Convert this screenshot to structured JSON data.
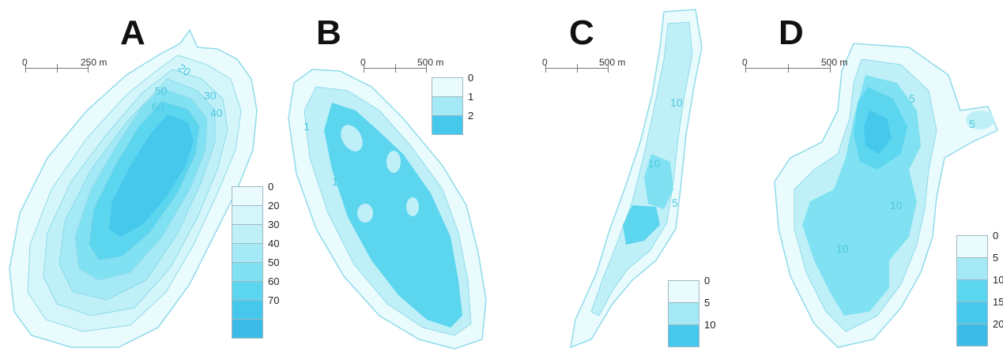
{
  "panels": [
    {
      "letter": "A",
      "scale": {
        "zero": "0",
        "end": "250 m"
      },
      "legend": [
        "0",
        "20",
        "30",
        "40",
        "50",
        "60",
        "70"
      ],
      "contour_labels": [
        "20",
        "30",
        "40",
        "50",
        "60"
      ]
    },
    {
      "letter": "B",
      "scale": {
        "zero": "0",
        "end": "500 m"
      },
      "legend": [
        "0",
        "1",
        "2"
      ],
      "contour_labels": [
        "1",
        "1"
      ]
    },
    {
      "letter": "C",
      "scale": {
        "zero": "0",
        "end": "500 m"
      },
      "legend": [
        "0",
        "5",
        "10"
      ],
      "contour_labels": [
        "10",
        "10",
        "5"
      ]
    },
    {
      "letter": "D",
      "scale": {
        "zero": "0",
        "end": "500 m"
      },
      "legend": [
        "0",
        "5",
        "10",
        "15",
        "20"
      ],
      "contour_labels": [
        "5",
        "5",
        "10",
        "10"
      ]
    }
  ],
  "colors": {
    "depth_ramp": [
      "#eafbfd",
      "#d4f6fb",
      "#bff0f8",
      "#a4e9f5",
      "#80e1f2",
      "#5cd5ef",
      "#45c8ec",
      "#3bbbe6"
    ],
    "contour_stroke": "#86d9e8"
  }
}
